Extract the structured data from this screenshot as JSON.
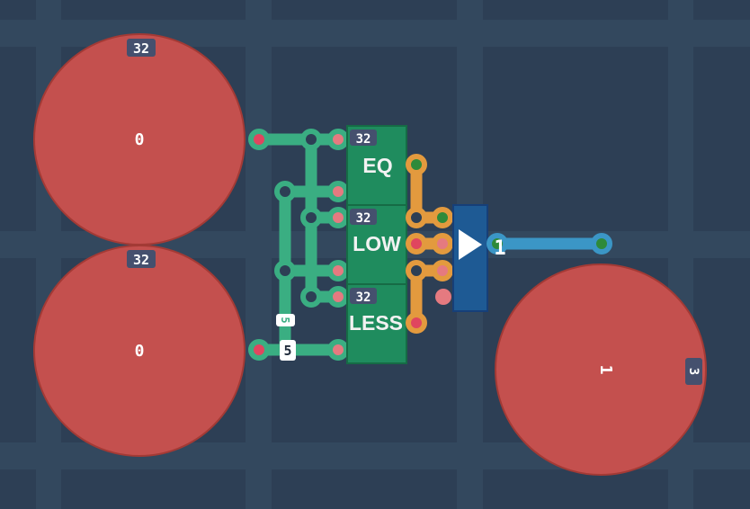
{
  "colors": {
    "background": "#2d3f55",
    "grid": "#34495f",
    "pin": "#c4504e",
    "wire_green": "#3aae82",
    "wire_orange": "#e39a3e",
    "wire_blue": "#3b96c6",
    "gate_green": "#1f8c5e",
    "buffer_blue": "#1e5a94",
    "badge": "#45506e"
  },
  "inputs": [
    {
      "bits_label": "32",
      "value": "0"
    },
    {
      "bits_label": "32",
      "value": "0"
    }
  ],
  "output": {
    "value": "1",
    "bits_label": "3"
  },
  "gates": [
    {
      "label": "EQ",
      "bits": "32"
    },
    {
      "label": "LOW",
      "bits": "32"
    },
    {
      "label": "LESS",
      "bits": "32"
    }
  ],
  "wire_labels": [
    "5",
    "5"
  ],
  "buffer_output_value": "1"
}
